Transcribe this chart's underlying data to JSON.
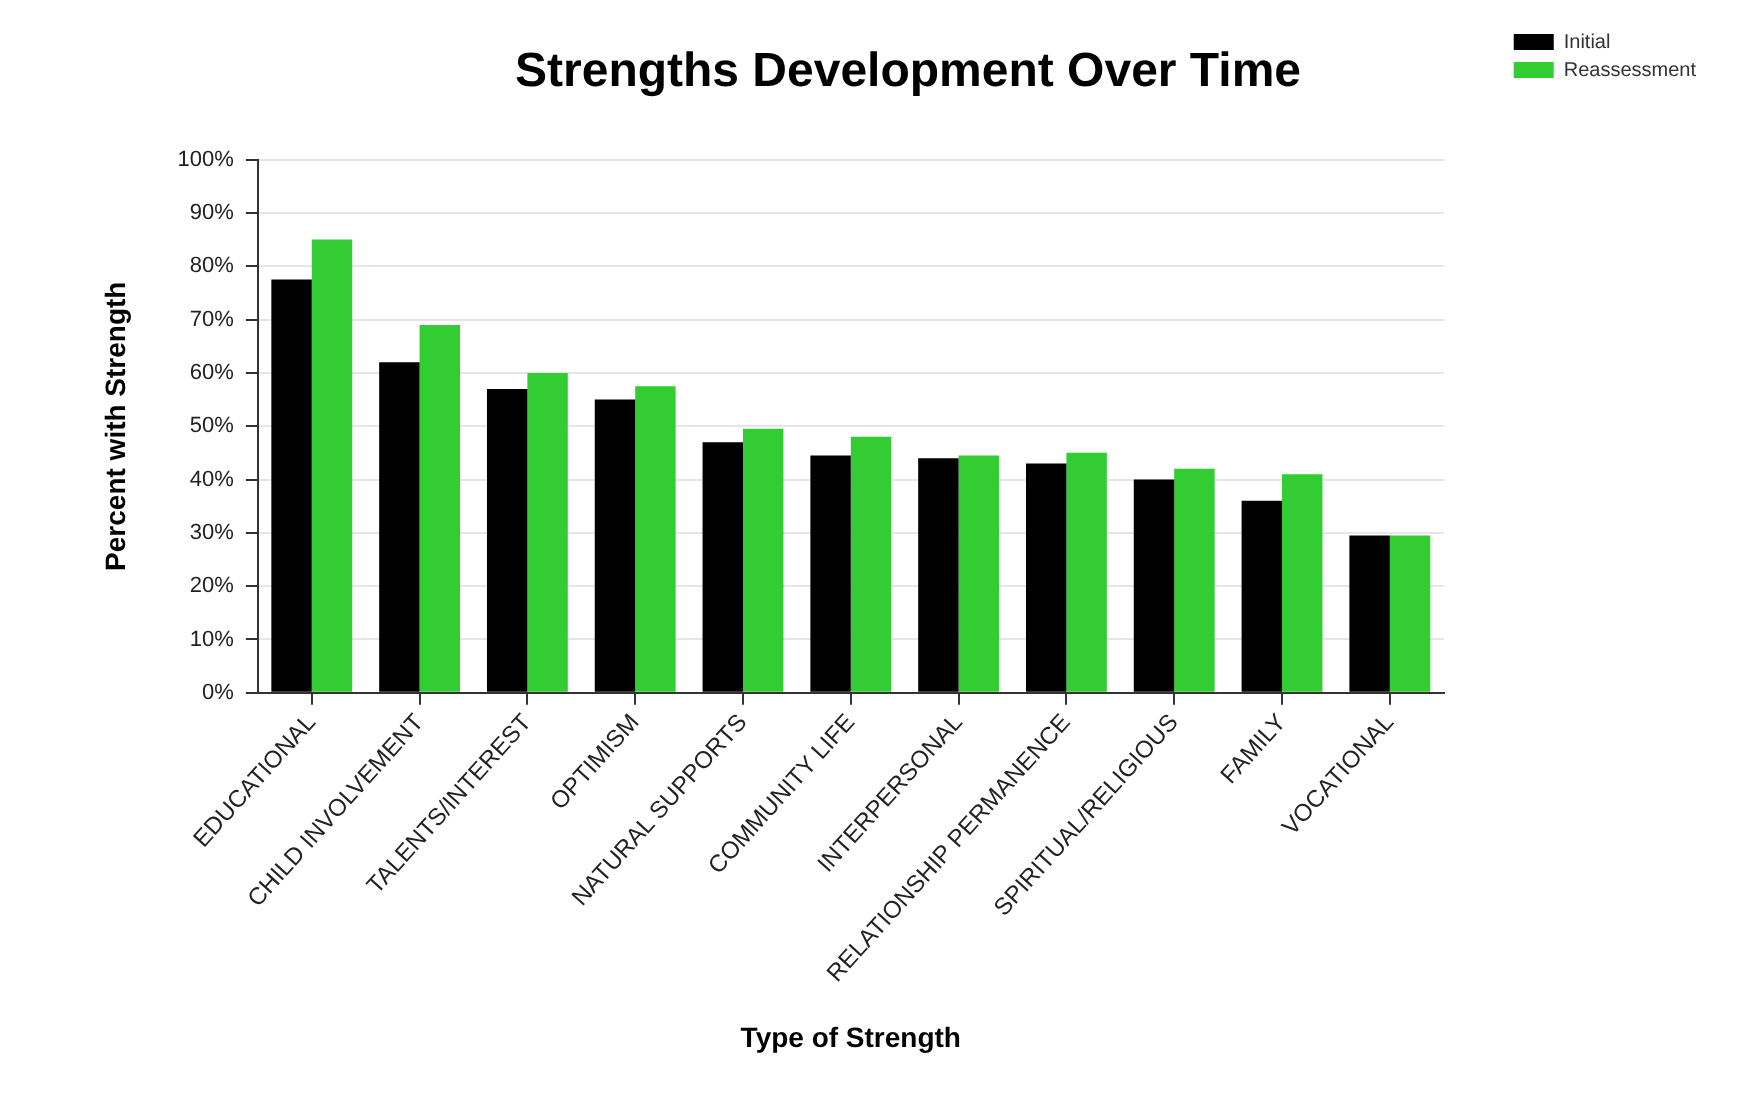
{
  "chart_data": {
    "type": "bar",
    "title": "Strengths Development Over Time",
    "xlabel": "Type of Strength",
    "ylabel": "Percent with Strength",
    "categories": [
      "EDUCATIONAL",
      "CHILD INVOLVEMENT",
      "TALENTS/INTEREST",
      "OPTIMISM",
      "NATURAL SUPPORTS",
      "COMMUNITY LIFE",
      "INTERPERSONAL",
      "RELATIONSHIP PERMANENCE",
      "SPIRITUAL/RELIGIOUS",
      "FAMILY",
      "VOCATIONAL"
    ],
    "series": [
      {
        "name": "Initial",
        "color": "#000000",
        "values": [
          77.5,
          62,
          57,
          55,
          47,
          44.5,
          44,
          43,
          40,
          36,
          29.5
        ]
      },
      {
        "name": "Reassessment",
        "color": "#33cc33",
        "values": [
          85,
          69,
          60,
          57.5,
          49.5,
          48,
          44.5,
          45,
          42,
          41,
          29.5
        ]
      }
    ],
    "ylim": [
      0,
      100
    ],
    "yticks": [
      {
        "value": 0,
        "label": "0%"
      },
      {
        "value": 10,
        "label": "10%"
      },
      {
        "value": 20,
        "label": "20%"
      },
      {
        "value": 30,
        "label": "30%"
      },
      {
        "value": 40,
        "label": "40%"
      },
      {
        "value": 50,
        "label": "50%"
      },
      {
        "value": 60,
        "label": "60%"
      },
      {
        "value": 70,
        "label": "70%"
      },
      {
        "value": 80,
        "label": "80%"
      },
      {
        "value": 90,
        "label": "90%"
      },
      {
        "value": 100,
        "label": "100%"
      }
    ],
    "grid": "y",
    "legend": "top right"
  }
}
